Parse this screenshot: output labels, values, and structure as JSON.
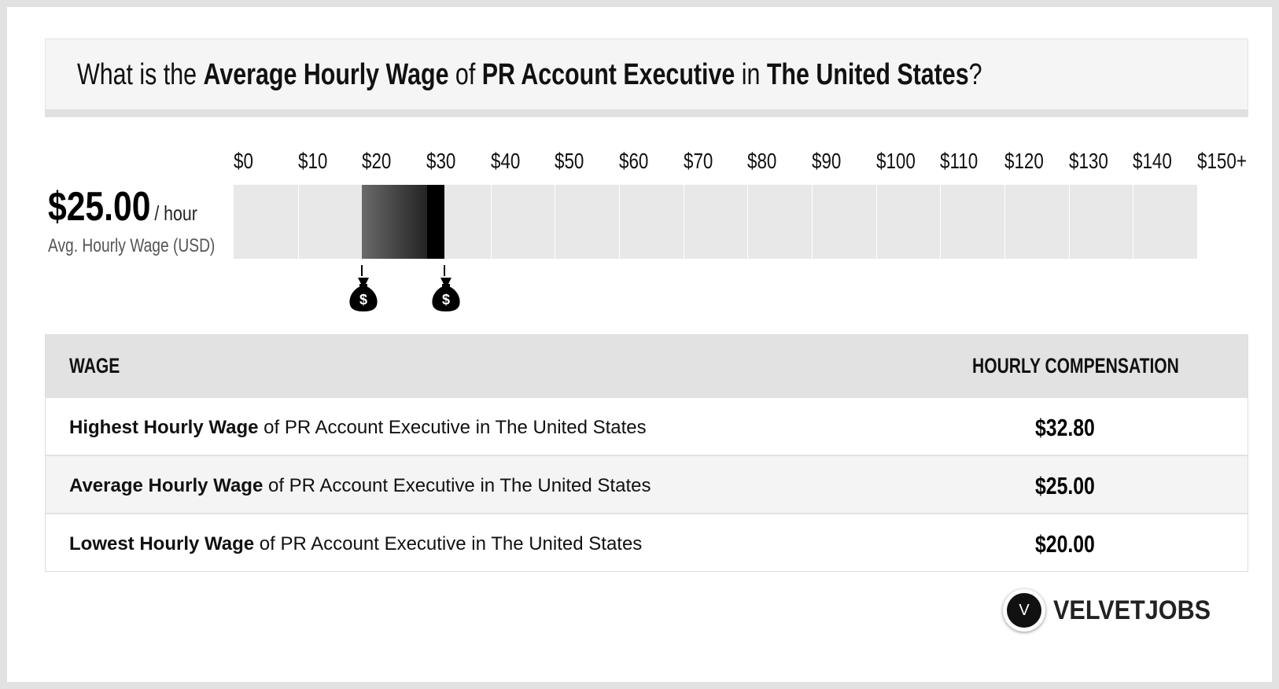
{
  "question": {
    "prefix": "What is the ",
    "metric": "Average Hourly Wage",
    "of": " of ",
    "job": "PR Account Executive",
    "in": " in ",
    "location": "The United States",
    "suffix": "?"
  },
  "summary": {
    "value": "$25.00",
    "unit": "/ hour",
    "label": "Avg. Hourly Wage (USD)"
  },
  "chart_data": {
    "type": "bar",
    "orientation": "horizontal-range",
    "tick_labels": [
      "$0",
      "$10",
      "$20",
      "$30",
      "$40",
      "$50",
      "$60",
      "$70",
      "$80",
      "$90",
      "$100",
      "$110",
      "$120",
      "$130",
      "$140",
      "$150+"
    ],
    "xlim": [
      0,
      150
    ],
    "range": {
      "low": 20.0,
      "average": 25.0,
      "high": 32.8
    },
    "markers": [
      20.0,
      32.8
    ],
    "marker_icon": "money-bag-icon",
    "colors": {
      "cell": "#e8e8e8",
      "bar_start": "#6a6a6a",
      "bar_end": "#111111"
    }
  },
  "table": {
    "headers": {
      "left": "WAGE",
      "right": "HOURLY COMPENSATION"
    },
    "rows": [
      {
        "bold": "Highest Hourly Wage",
        "rest": " of PR Account Executive in The United States",
        "value": "$32.80"
      },
      {
        "bold": "Average Hourly Wage",
        "rest": " of PR Account Executive in The United States",
        "value": "$25.00"
      },
      {
        "bold": "Lowest Hourly Wage",
        "rest": " of PR Account Executive in The United States",
        "value": "$20.00"
      }
    ]
  },
  "brand": {
    "name": "VELVETJOBS",
    "logo_letter": "V",
    "icon": "velvetjobs-logo-icon"
  }
}
